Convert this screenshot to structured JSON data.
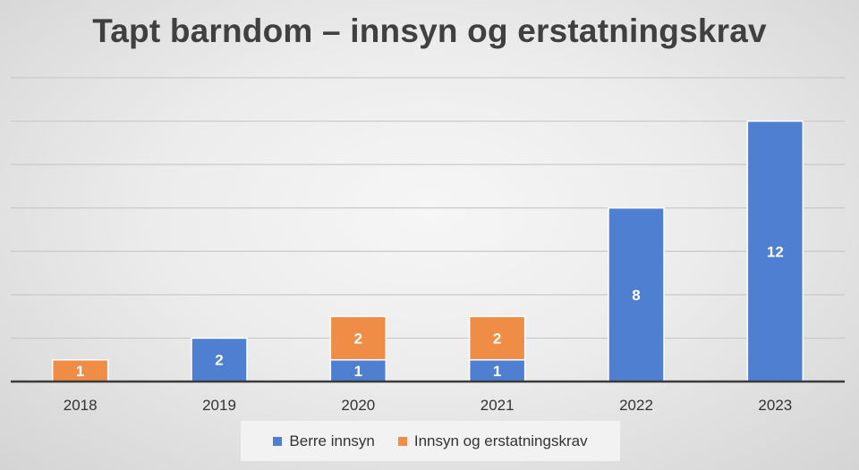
{
  "chart_data": {
    "type": "bar",
    "stacked": true,
    "title": "Tapt barndom – innsyn og erstatningskrav",
    "categories": [
      "2018",
      "2019",
      "2020",
      "2021",
      "2022",
      "2023"
    ],
    "series": [
      {
        "name": "Berre innsyn",
        "color": "#4f7fd1",
        "values": [
          0,
          2,
          1,
          1,
          8,
          12
        ]
      },
      {
        "name": "Innsyn og erstatningskrav",
        "color": "#ef8d47",
        "values": [
          1,
          0,
          2,
          2,
          0,
          0
        ]
      }
    ],
    "xlabel": "",
    "ylabel": "",
    "ylim": [
      0,
      14
    ],
    "grid": true,
    "legend": "bottom"
  }
}
